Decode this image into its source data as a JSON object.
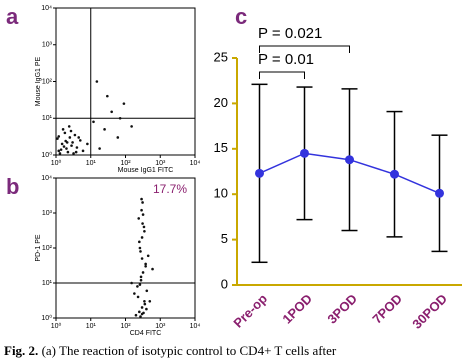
{
  "chart_data": [
    {
      "type": "scatter",
      "panel_label": "a",
      "xlabel": "Mouse IgG1 FITC",
      "ylabel": "Mouse IgG1 PE",
      "log_x": true,
      "log_y": true,
      "color": "#111111",
      "xlim": [
        1,
        10000
      ],
      "ylim": [
        1,
        10000
      ],
      "xticks": [
        {
          "value": 1,
          "label": "10⁰"
        },
        {
          "value": 10,
          "label": "10¹"
        },
        {
          "value": 100,
          "label": "10²"
        },
        {
          "value": 1000,
          "label": "10³"
        },
        {
          "value": 10000,
          "label": "10⁴"
        }
      ],
      "yticks": [
        {
          "value": 1,
          "label": "10⁰"
        },
        {
          "value": 10,
          "label": "10¹"
        },
        {
          "value": 100,
          "label": "10²"
        },
        {
          "value": 1000,
          "label": "10³"
        },
        {
          "value": 10000,
          "label": "10⁴"
        }
      ],
      "gate_x": 10,
      "gate_y": 10,
      "x": [
        1.2,
        1.5,
        2,
        2.5,
        3,
        1.8,
        1.3,
        4,
        3.5,
        2.2,
        1.6,
        2.8,
        5,
        1.1,
        1.4,
        3.2,
        2.4,
        6,
        1.9,
        2.7,
        1.2,
        4.5,
        3.8,
        1.7,
        2.1,
        8,
        12,
        25,
        40,
        60,
        90,
        150,
        30,
        18,
        70,
        15
      ],
      "values": [
        1.3,
        2,
        1.5,
        3,
        2.2,
        4,
        1.1,
        1.6,
        3.5,
        1.2,
        5,
        1.8,
        2.5,
        2.8,
        1.4,
        1.1,
        6,
        1.3,
        2.4,
        4.5,
        3.2,
        3,
        1.2,
        1.7,
        2.2,
        2,
        8,
        5,
        15,
        3,
        25,
        6,
        40,
        1.5,
        10,
        100
      ]
    },
    {
      "type": "scatter",
      "panel_label": "b",
      "xlabel": "CD4 FITC",
      "ylabel": "PD-1 PE",
      "annotation": "17.7%",
      "log_x": true,
      "log_y": true,
      "color": "#111111",
      "xlim": [
        1,
        10000
      ],
      "ylim": [
        1,
        10000
      ],
      "xticks": [
        {
          "value": 1,
          "label": "10⁰"
        },
        {
          "value": 10,
          "label": "10¹"
        },
        {
          "value": 100,
          "label": "10²"
        },
        {
          "value": 1000,
          "label": "10³"
        },
        {
          "value": 10000,
          "label": "10⁴"
        }
      ],
      "yticks": [
        {
          "value": 1,
          "label": "10⁰"
        },
        {
          "value": 10,
          "label": "10¹"
        },
        {
          "value": 100,
          "label": "10²"
        },
        {
          "value": 1000,
          "label": "10³"
        },
        {
          "value": 10000,
          "label": "10⁴"
        }
      ],
      "gate_y": 10,
      "x": [
        200,
        250,
        300,
        350,
        400,
        180,
        220,
        280,
        320,
        380,
        450,
        260,
        300,
        340,
        240,
        290,
        310,
        270,
        330,
        360,
        230,
        410,
        280,
        300,
        250,
        350,
        320,
        290,
        500,
        150,
        600,
        270,
        310,
        380,
        260,
        300
      ],
      "values": [
        1.2,
        1.5,
        2,
        3,
        1.8,
        5,
        8,
        12,
        20,
        35,
        60,
        100,
        200,
        400,
        700,
        1200,
        2000,
        1.1,
        1.4,
        2.5,
        4,
        6,
        15,
        50,
        150,
        300,
        900,
        2500,
        3,
        10,
        25,
        80,
        500,
        30,
        9,
        1.3
      ]
    },
    {
      "type": "line",
      "panel_label": "c",
      "color": "#3333dd",
      "categories": [
        "Pre-op",
        "1POD",
        "3POD",
        "7POD",
        "30POD"
      ],
      "values": [
        12.3,
        14.5,
        13.8,
        12.2,
        10.1
      ],
      "errors": [
        9.8,
        7.3,
        7.8,
        6.9,
        6.4
      ],
      "ylim": [
        0,
        25
      ],
      "yticks": [
        0,
        5,
        10,
        15,
        20,
        25
      ],
      "annotations": [
        "P = 0.021",
        "P = 0.01"
      ]
    }
  ],
  "caption_label": "Fig. 2.",
  "caption_text": "(a) The reaction of isotypic control to CD4+ T cells after"
}
